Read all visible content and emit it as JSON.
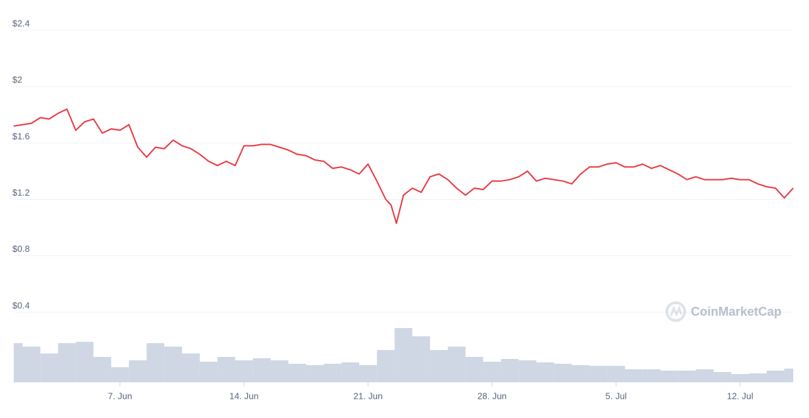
{
  "chart_data": {
    "type": "line",
    "watermark": "CoinMarketCap",
    "x": [
      1,
      1.5,
      2,
      2.5,
      3,
      3.5,
      4,
      4.5,
      5,
      5.5,
      6,
      6.5,
      7,
      7.5,
      8,
      8.5,
      9,
      9.5,
      10,
      10.5,
      11,
      11.5,
      12,
      12.5,
      13,
      13.5,
      14,
      14.5,
      15,
      15.5,
      16,
      16.5,
      17,
      17.5,
      18,
      18.5,
      19,
      19.5,
      20,
      20.5,
      21,
      21.5,
      22,
      22.3,
      22.6,
      23,
      23.5,
      24,
      24.5,
      25,
      25.5,
      26,
      26.5,
      27,
      27.5,
      28,
      28.5,
      29,
      29.5,
      30,
      30.5,
      31,
      31.5,
      32,
      32.5,
      33,
      33.5,
      34,
      34.5,
      35,
      35.5,
      36,
      36.5,
      37,
      37.5,
      38,
      38.5,
      39,
      39.5,
      40,
      40.5,
      41,
      41.5,
      42,
      42.5,
      43,
      43.5,
      44,
      44.5,
      45
    ],
    "series": [
      {
        "color": "#ea3943",
        "values": [
          1.72,
          1.73,
          1.74,
          1.78,
          1.77,
          1.81,
          1.84,
          1.69,
          1.75,
          1.77,
          1.67,
          1.7,
          1.69,
          1.73,
          1.57,
          1.5,
          1.57,
          1.56,
          1.62,
          1.58,
          1.56,
          1.52,
          1.47,
          1.44,
          1.47,
          1.44,
          1.58,
          1.58,
          1.59,
          1.59,
          1.57,
          1.55,
          1.52,
          1.51,
          1.48,
          1.47,
          1.42,
          1.43,
          1.41,
          1.38,
          1.45,
          1.33,
          1.2,
          1.16,
          1.03,
          1.23,
          1.28,
          1.25,
          1.36,
          1.38,
          1.34,
          1.28,
          1.23,
          1.28,
          1.27,
          1.33,
          1.33,
          1.34,
          1.36,
          1.4,
          1.33,
          1.35,
          1.34,
          1.33,
          1.31,
          1.38,
          1.43,
          1.43,
          1.45,
          1.46,
          1.43,
          1.43,
          1.45,
          1.42,
          1.44,
          1.41,
          1.38,
          1.34,
          1.36,
          1.34,
          1.34,
          1.34,
          1.35,
          1.34,
          1.34,
          1.31,
          1.29,
          1.28,
          1.21,
          1.28
        ]
      }
    ],
    "volume": {
      "color": "#cfd6e4",
      "ylim": [
        0,
        100
      ],
      "x": [
        1,
        2,
        3,
        4,
        5,
        6,
        7,
        8,
        9,
        10,
        11,
        12,
        13,
        14,
        15,
        16,
        17,
        18,
        19,
        20,
        21,
        22,
        23,
        24,
        25,
        26,
        27,
        28,
        29,
        30,
        31,
        32,
        33,
        34,
        35,
        36,
        37,
        38,
        39,
        40,
        41,
        42,
        43,
        44,
        45
      ],
      "values": [
        57,
        52,
        42,
        57,
        59,
        37,
        22,
        32,
        57,
        52,
        42,
        30,
        37,
        32,
        35,
        32,
        27,
        25,
        27,
        29,
        25,
        47,
        79,
        67,
        47,
        52,
        37,
        30,
        34,
        32,
        29,
        27,
        25,
        24,
        24,
        19,
        19,
        17,
        17,
        19,
        15,
        12,
        13,
        17,
        20
      ]
    },
    "xlim": [
      1,
      45
    ],
    "xticks": [
      {
        "value": 7,
        "label": "7. Jun"
      },
      {
        "value": 14,
        "label": "14. Jun"
      },
      {
        "value": 21,
        "label": "21. Jun"
      },
      {
        "value": 28,
        "label": "28. Jun"
      },
      {
        "value": 35,
        "label": "5. Jul"
      },
      {
        "value": 42,
        "label": "12. Jul"
      }
    ],
    "ylim": [
      0,
      2.4
    ],
    "yticks": [
      {
        "value": 0.4,
        "label": "$0.4"
      },
      {
        "value": 0.8,
        "label": "$0.8"
      },
      {
        "value": 1.2,
        "label": "$1.2"
      },
      {
        "value": 1.6,
        "label": "$1.6"
      },
      {
        "value": 2,
        "label": "$2"
      },
      {
        "value": 2.4,
        "label": "$2.4"
      }
    ],
    "grid": true
  }
}
